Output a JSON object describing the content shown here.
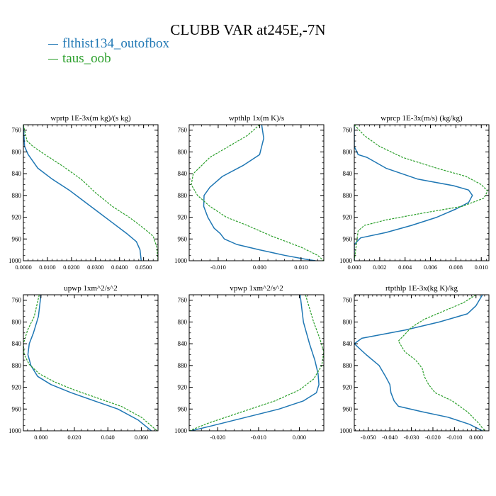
{
  "page": {
    "title": "CLUBB VAR at245E,-7N",
    "legend": [
      {
        "label": "flthist134_outofbox",
        "color": "#1f77b4"
      },
      {
        "label": "taus_oob",
        "color": "#2ca02c"
      }
    ]
  },
  "chart_data": [
    {
      "type": "line",
      "title": "wprtp  1E-3x(m kg)/(s kg)",
      "xlim": [
        0.0,
        0.056
      ],
      "ylim": [
        1000,
        750
      ],
      "xticks": [
        0.0,
        0.01,
        0.02,
        0.03,
        0.04,
        0.05
      ],
      "xtick_labels": [
        "0.0000",
        "0.0100",
        "0.0200",
        "0.0300",
        "0.0400",
        "0.0500"
      ],
      "yticks": [
        760,
        800,
        840,
        880,
        920,
        960,
        1000
      ],
      "ytick_labels": [
        "760",
        "800",
        "840",
        "880",
        "920",
        "960",
        "1000"
      ],
      "series": [
        {
          "name": "flthist134_outofbox",
          "color": "#1f77b4",
          "dashed": false,
          "x": [
            0.0,
            0.0005,
            0.002,
            0.006,
            0.012,
            0.019,
            0.025,
            0.031,
            0.037,
            0.043,
            0.047,
            0.0485,
            0.049
          ],
          "y": [
            750,
            790,
            805,
            830,
            850,
            870,
            890,
            910,
            930,
            950,
            965,
            980,
            1000
          ]
        },
        {
          "name": "taus_oob",
          "color": "#2ca02c",
          "dashed": true,
          "x": [
            0.0,
            0.0015,
            0.004,
            0.009,
            0.016,
            0.024,
            0.03,
            0.037,
            0.044,
            0.05,
            0.054,
            0.0555,
            0.056
          ],
          "y": [
            750,
            780,
            790,
            805,
            825,
            850,
            875,
            900,
            920,
            940,
            955,
            975,
            1000
          ]
        }
      ]
    },
    {
      "type": "line",
      "title": "wpthlp  1x(m K)/s",
      "xlim": [
        -0.017,
        0.0155
      ],
      "ylim": [
        1000,
        750
      ],
      "xticks": [
        -0.01,
        0.0,
        0.01
      ],
      "xtick_labels": [
        "-0.010",
        "0.000",
        "0.010"
      ],
      "yticks": [
        760,
        800,
        840,
        880,
        920,
        960,
        1000
      ],
      "ytick_labels": [
        "760",
        "800",
        "840",
        "880",
        "920",
        "960",
        "1000"
      ],
      "series": [
        {
          "name": "flthist134_outofbox",
          "color": "#1f77b4",
          "dashed": false,
          "x": [
            0.0005,
            0.001,
            0.0,
            -0.004,
            -0.009,
            -0.012,
            -0.0134,
            -0.0135,
            -0.0125,
            -0.011,
            -0.0095,
            -0.0085,
            -0.0055,
            0.0,
            0.006,
            0.011,
            0.0135
          ],
          "y": [
            750,
            775,
            805,
            825,
            845,
            865,
            880,
            900,
            920,
            940,
            950,
            960,
            970,
            980,
            990,
            997,
            1000
          ]
        },
        {
          "name": "taus_oob",
          "color": "#2ca02c",
          "dashed": true,
          "x": [
            0.0,
            -0.003,
            -0.012,
            -0.016,
            -0.0165,
            -0.015,
            -0.012,
            -0.008,
            -0.003,
            0.003,
            0.01,
            0.014,
            0.0155
          ],
          "y": [
            750,
            770,
            810,
            840,
            860,
            880,
            900,
            920,
            935,
            955,
            975,
            990,
            1000
          ]
        }
      ]
    },
    {
      "type": "line",
      "title": "wprcp  1E-3x(m/s) (kg/kg)",
      "xlim": [
        0.0,
        0.0106
      ],
      "ylim": [
        1000,
        750
      ],
      "xticks": [
        0.0,
        0.002,
        0.004,
        0.006,
        0.008,
        0.01
      ],
      "xtick_labels": [
        "0.000",
        "0.002",
        "0.004",
        "0.006",
        "0.008",
        "0.010"
      ],
      "yticks": [
        760,
        800,
        840,
        880,
        920,
        960,
        1000
      ],
      "ytick_labels": [
        "760",
        "800",
        "840",
        "880",
        "920",
        "960",
        "1000"
      ],
      "series": [
        {
          "name": "flthist134_outofbox",
          "color": "#1f77b4",
          "dashed": false,
          "x": [
            0.0,
            0.0,
            0.0003,
            0.001,
            0.0025,
            0.005,
            0.0078,
            0.009,
            0.0093,
            0.009,
            0.008,
            0.0065,
            0.0045,
            0.0025,
            0.0005,
            0.0,
            0.0
          ],
          "y": [
            750,
            790,
            805,
            810,
            830,
            850,
            862,
            870,
            880,
            893,
            905,
            920,
            935,
            948,
            958,
            970,
            1000
          ]
        },
        {
          "name": "taus_oob",
          "color": "#2ca02c",
          "dashed": true,
          "x": [
            0.0,
            0.0008,
            0.002,
            0.0038,
            0.0065,
            0.0088,
            0.01,
            0.0105,
            0.0102,
            0.0085,
            0.0055,
            0.0025,
            0.0008,
            0.0003,
            0.0
          ],
          "y": [
            750,
            770,
            790,
            810,
            830,
            845,
            860,
            872,
            885,
            900,
            912,
            925,
            935,
            945,
            1000
          ]
        }
      ]
    },
    {
      "type": "line",
      "title": "upwp  1xm^2/s^2",
      "xlim": [
        -0.0105,
        0.07
      ],
      "ylim": [
        1000,
        750
      ],
      "xticks": [
        0.0,
        0.02,
        0.04,
        0.06
      ],
      "xtick_labels": [
        "0.000",
        "0.020",
        "0.040",
        "0.060"
      ],
      "yticks": [
        760,
        800,
        840,
        880,
        920,
        960,
        1000
      ],
      "ytick_labels": [
        "760",
        "800",
        "840",
        "880",
        "920",
        "960",
        "1000"
      ],
      "series": [
        {
          "name": "flthist134_outofbox",
          "color": "#1f77b4",
          "dashed": false,
          "x": [
            0.0,
            -0.0015,
            -0.0045,
            -0.007,
            -0.0078,
            -0.006,
            -0.002,
            0.006,
            0.018,
            0.032,
            0.046,
            0.058,
            0.066
          ],
          "y": [
            750,
            790,
            820,
            840,
            860,
            880,
            900,
            915,
            930,
            945,
            960,
            980,
            1000
          ]
        },
        {
          "name": "taus_oob",
          "color": "#2ca02c",
          "dashed": true,
          "x": [
            -0.001,
            -0.004,
            -0.008,
            -0.0105,
            -0.01,
            -0.007,
            -0.001,
            0.008,
            0.02,
            0.034,
            0.048,
            0.06,
            0.0695
          ],
          "y": [
            750,
            790,
            815,
            840,
            860,
            878,
            895,
            910,
            925,
            940,
            955,
            975,
            1000
          ]
        }
      ]
    },
    {
      "type": "line",
      "title": "vpwp  1xm^2/s^2",
      "xlim": [
        -0.027,
        0.006
      ],
      "ylim": [
        1000,
        750
      ],
      "xticks": [
        -0.02,
        -0.01,
        0.0
      ],
      "xtick_labels": [
        "-0.020",
        "-0.010",
        "0.000"
      ],
      "yticks": [
        760,
        800,
        840,
        880,
        920,
        960,
        1000
      ],
      "ytick_labels": [
        "760",
        "800",
        "840",
        "880",
        "920",
        "960",
        "1000"
      ],
      "series": [
        {
          "name": "flthist134_outofbox",
          "color": "#1f77b4",
          "dashed": false,
          "x": [
            0.0002,
            0.001,
            0.0025,
            0.0038,
            0.0046,
            0.0048,
            0.0042,
            0.001,
            -0.005,
            -0.013,
            -0.021,
            -0.0265
          ],
          "y": [
            750,
            800,
            840,
            870,
            895,
            915,
            930,
            945,
            960,
            975,
            990,
            1000
          ]
        },
        {
          "name": "taus_oob",
          "color": "#2ca02c",
          "dashed": true,
          "x": [
            0.0015,
            0.0035,
            0.005,
            0.006,
            0.0055,
            0.0035,
            0.0,
            -0.006,
            -0.014,
            -0.022,
            -0.027
          ],
          "y": [
            750,
            800,
            830,
            855,
            880,
            905,
            925,
            945,
            965,
            985,
            1000
          ]
        }
      ]
    },
    {
      "type": "line",
      "title": "rtpthlp  1E-3x(kg K)/kg",
      "xlim": [
        -0.0565,
        0.006
      ],
      "ylim": [
        1000,
        750
      ],
      "xticks": [
        -0.05,
        -0.04,
        -0.03,
        -0.02,
        -0.01,
        0.0
      ],
      "xtick_labels": [
        "-0.050",
        "-0.040",
        "-0.030",
        "-0.020",
        "-0.010",
        "0.000"
      ],
      "yticks": [
        760,
        800,
        840,
        880,
        920,
        960,
        1000
      ],
      "ytick_labels": [
        "760",
        "800",
        "840",
        "880",
        "920",
        "960",
        "1000"
      ],
      "series": [
        {
          "name": "flthist134_outofbox",
          "color": "#1f77b4",
          "dashed": false,
          "x": [
            0.003,
            0.0,
            -0.004,
            -0.017,
            -0.033,
            -0.053,
            -0.0565,
            -0.051,
            -0.045,
            -0.042,
            -0.04,
            -0.0395,
            -0.038,
            -0.036,
            -0.025,
            -0.013,
            -0.003,
            0.003
          ],
          "y": [
            750,
            770,
            785,
            800,
            815,
            830,
            840,
            860,
            880,
            900,
            915,
            930,
            945,
            955,
            965,
            975,
            988,
            1000
          ]
        },
        {
          "name": "taus_oob",
          "color": "#2ca02c",
          "dashed": true,
          "x": [
            0.0,
            -0.006,
            -0.015,
            -0.024,
            -0.03,
            -0.036,
            -0.033,
            -0.028,
            -0.025,
            -0.024,
            -0.022,
            -0.019,
            -0.011,
            -0.004,
            0.001,
            0.004
          ],
          "y": [
            750,
            765,
            780,
            795,
            810,
            835,
            855,
            870,
            885,
            900,
            915,
            930,
            945,
            965,
            985,
            1000
          ]
        }
      ]
    }
  ]
}
